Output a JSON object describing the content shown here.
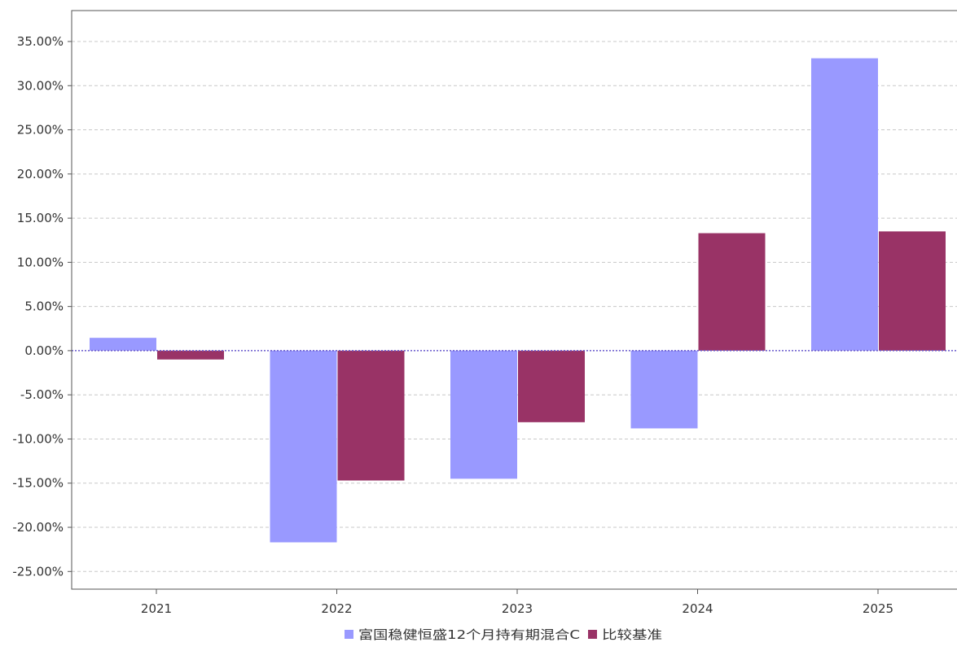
{
  "chart_data": {
    "type": "bar",
    "categories": [
      "2021",
      "2022",
      "2023",
      "2024",
      "2025"
    ],
    "series": [
      {
        "name": "富国稳健恒盛12个月持有期混合C",
        "color": "#9999ff",
        "values": [
          1.45,
          -21.7,
          -14.5,
          -8.8,
          33.1
        ]
      },
      {
        "name": "比较基准",
        "color": "#993366",
        "values": [
          -1.0,
          -14.7,
          -8.1,
          13.3,
          13.5
        ]
      }
    ],
    "yticks": [
      "35.00%",
      "30.00%",
      "25.00%",
      "20.00%",
      "15.00%",
      "10.00%",
      "5.00%",
      "0.00%",
      "-5.00%",
      "-10.00%",
      "-15.00%",
      "-20.00%",
      "-25.00%"
    ],
    "ylim": [
      -27.0,
      38.5
    ],
    "grid": true,
    "legend": "bottom",
    "zero_line_color": "#6a5acd",
    "grid_color": "#c8c8c8",
    "axis_color": "#555555"
  }
}
